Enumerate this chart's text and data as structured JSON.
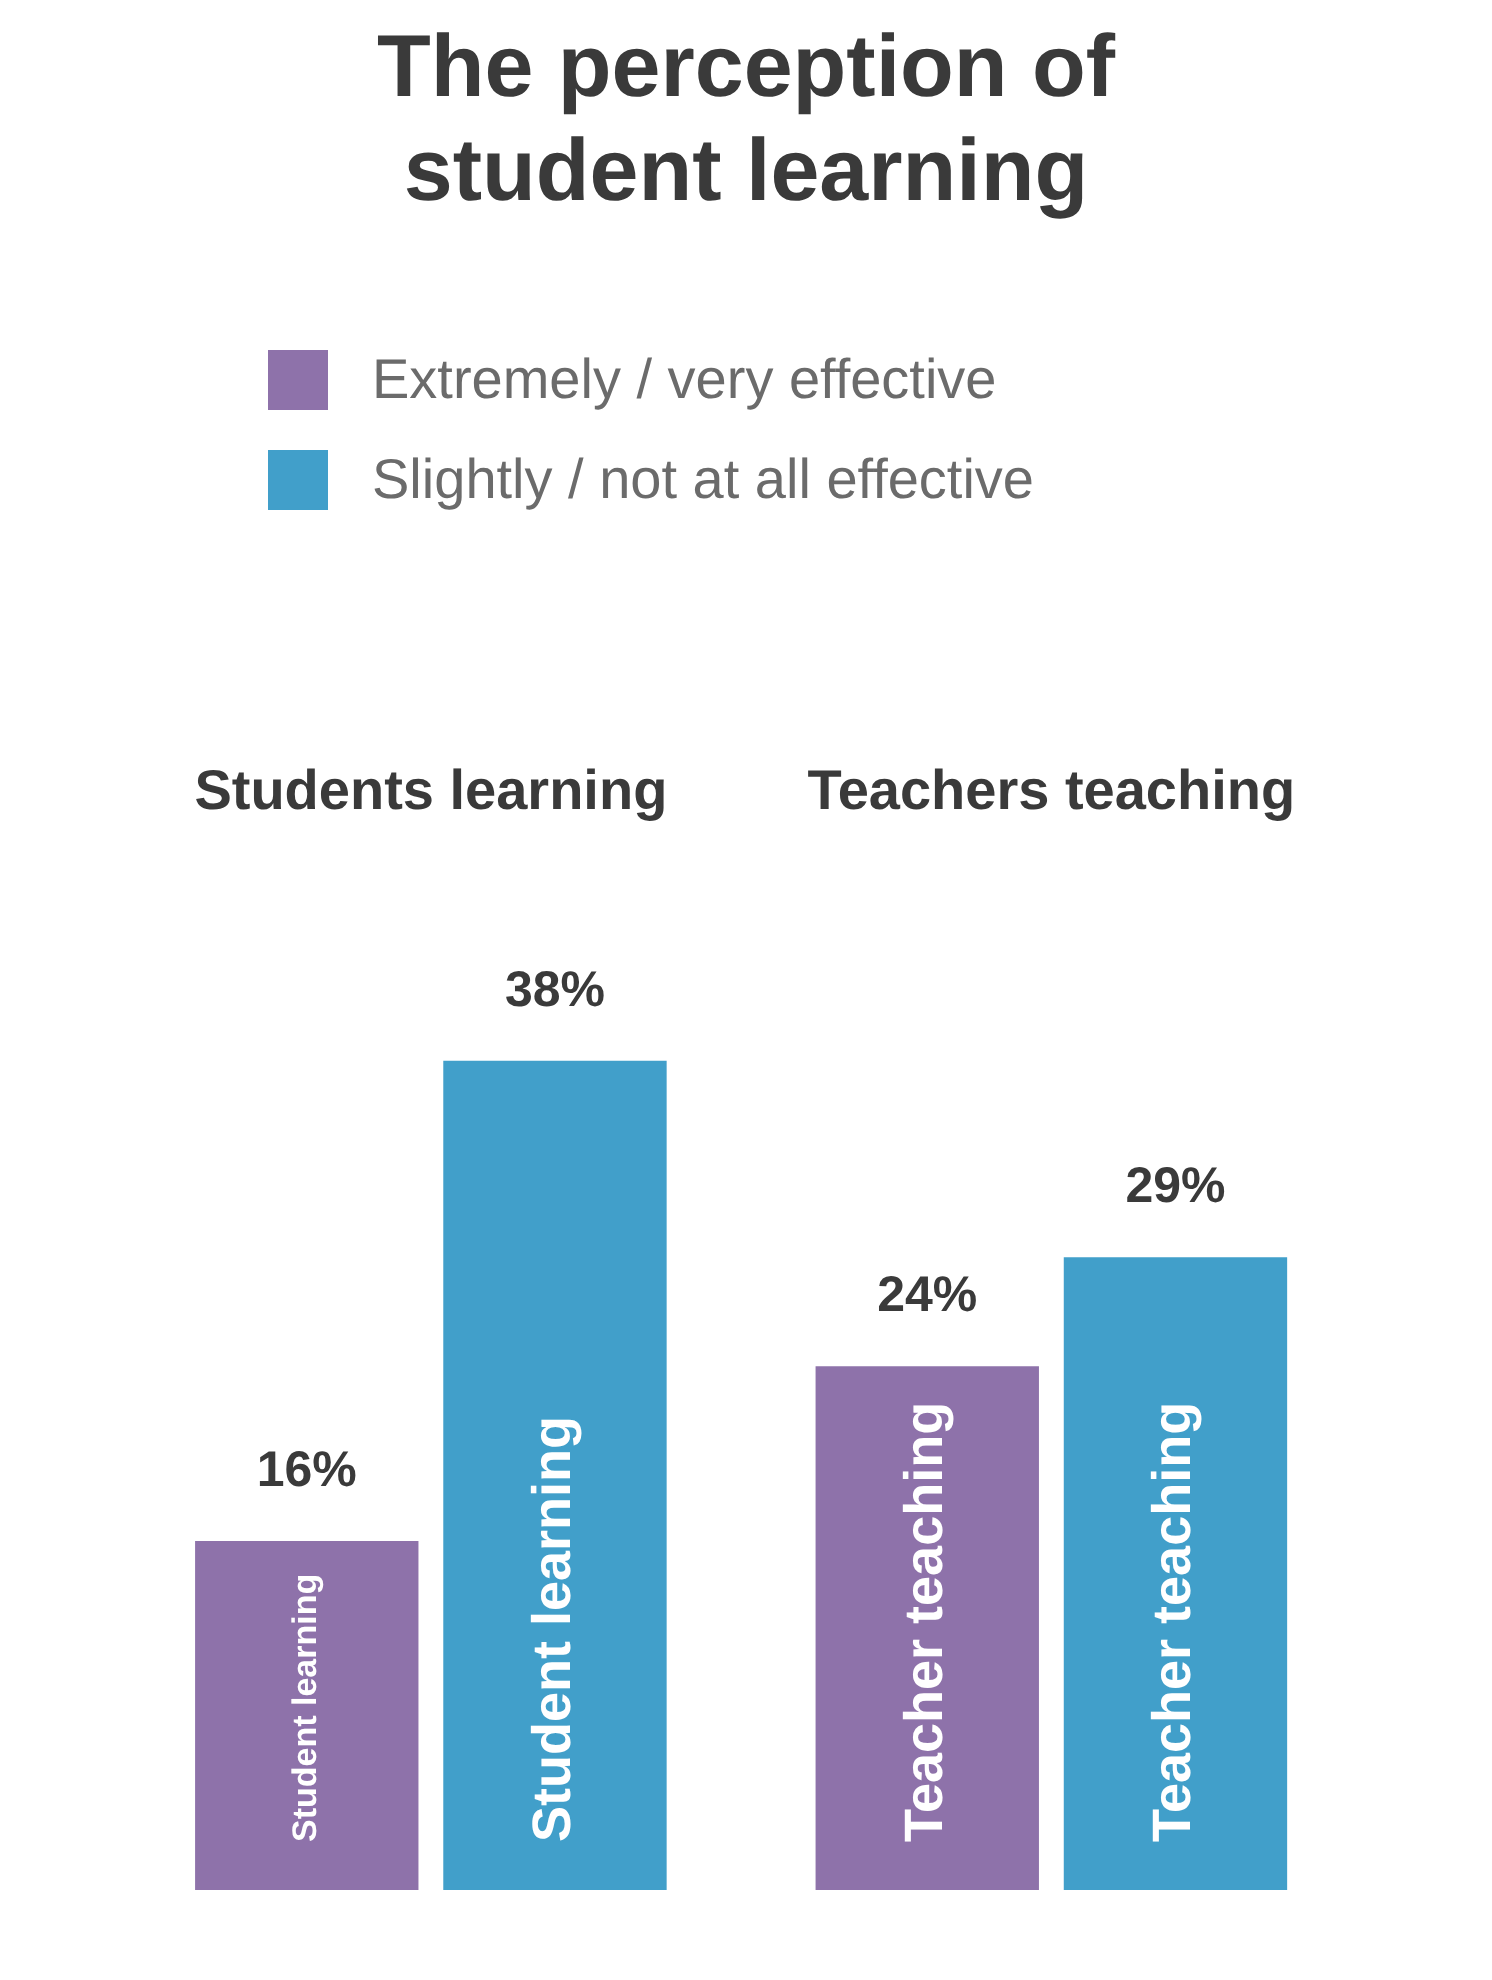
{
  "chart_data": {
    "type": "bar",
    "title": "The perception of student learning",
    "categories": [
      "Students learning",
      "Teachers teaching"
    ],
    "series": [
      {
        "name": "Extremely / very effective",
        "color": "#8e72aa",
        "values": [
          16,
          24
        ],
        "value_labels": [
          "16%",
          "24%"
        ]
      },
      {
        "name": "Slightly / not at all effective",
        "color": "#419fca",
        "values": [
          38,
          29
        ],
        "value_labels": [
          "38%",
          "29%"
        ]
      }
    ],
    "annotations": [
      "Student learning",
      "Student learning",
      "Teacher teaching",
      "Teacher teaching"
    ],
    "legend": "top left",
    "grid": false
  }
}
